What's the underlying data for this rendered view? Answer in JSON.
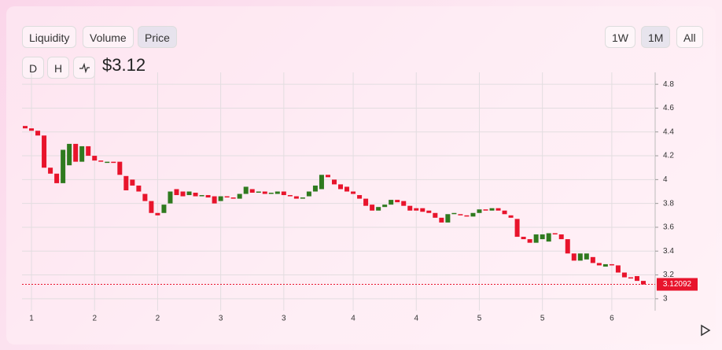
{
  "toolbar": {
    "tabs": [
      "Liquidity",
      "Volume",
      "Price"
    ],
    "ranges": [
      "1W",
      "1M",
      "All"
    ],
    "intervals": [
      "D",
      "H"
    ]
  },
  "price": "$3.12",
  "chart_data": {
    "type": "candlestick",
    "categories": [
      null,
      "1",
      null,
      null,
      null,
      null,
      null,
      null,
      null,
      null,
      null,
      "2",
      null,
      null,
      null,
      null,
      null,
      null,
      null,
      null,
      null,
      "2",
      null,
      null,
      null,
      null,
      null,
      null,
      null,
      null,
      null,
      "3",
      null,
      null,
      null,
      null,
      null,
      null,
      null,
      null,
      null,
      "3",
      null,
      null,
      null,
      null,
      null,
      null,
      null,
      null,
      null,
      null,
      "4",
      null,
      null,
      null,
      null,
      null,
      null,
      null,
      null,
      null,
      "4",
      null,
      null,
      null,
      null,
      null,
      null,
      null,
      null,
      null,
      "5",
      null,
      null,
      null,
      null,
      null,
      null,
      null,
      null,
      null,
      "5",
      null,
      null,
      null,
      null,
      null,
      null,
      null,
      null,
      null,
      null,
      "6",
      null,
      null,
      null,
      null,
      null
    ],
    "open": [
      4.45,
      4.43,
      4.41,
      4.37,
      4.1,
      4.05,
      3.97,
      4.12,
      4.3,
      4.15,
      4.28,
      4.2,
      4.16,
      4.15,
      4.15,
      4.15,
      4.03,
      4.0,
      3.95,
      3.88,
      3.82,
      3.72,
      3.72,
      3.8,
      3.92,
      3.9,
      3.87,
      3.89,
      3.86,
      3.87,
      3.86,
      3.82,
      3.86,
      3.85,
      3.84,
      3.88,
      3.92,
      3.89,
      3.9,
      3.88,
      3.88,
      3.9,
      3.87,
      3.86,
      3.84,
      3.86,
      3.9,
      3.92,
      4.04,
      4.0,
      3.96,
      3.94,
      3.9,
      3.87,
      3.84,
      3.79,
      3.74,
      3.77,
      3.79,
      3.83,
      3.82,
      3.78,
      3.76,
      3.76,
      3.74,
      3.72,
      3.68,
      3.64,
      3.71,
      3.71,
      3.7,
      3.69,
      3.72,
      3.75,
      3.74,
      3.76,
      3.74,
      3.7,
      3.67,
      3.52,
      3.5,
      3.47,
      3.5,
      3.48,
      3.55,
      3.54,
      3.5,
      3.38,
      3.32,
      3.33,
      3.35,
      3.3,
      3.27,
      3.29,
      3.28,
      3.22,
      3.18,
      3.19,
      3.15
    ],
    "close": [
      4.43,
      4.41,
      4.37,
      4.1,
      4.05,
      3.97,
      4.25,
      4.3,
      4.15,
      4.28,
      4.2,
      4.16,
      4.15,
      4.15,
      4.14,
      4.04,
      3.91,
      3.95,
      3.9,
      3.82,
      3.72,
      3.7,
      3.79,
      3.9,
      3.87,
      3.86,
      3.9,
      3.86,
      3.87,
      3.85,
      3.8,
      3.86,
      3.85,
      3.84,
      3.88,
      3.94,
      3.89,
      3.9,
      3.88,
      3.89,
      3.9,
      3.87,
      3.86,
      3.84,
      3.85,
      3.9,
      3.95,
      4.04,
      4.02,
      3.96,
      3.92,
      3.9,
      3.88,
      3.84,
      3.78,
      3.74,
      3.77,
      3.79,
      3.83,
      3.81,
      3.78,
      3.74,
      3.74,
      3.73,
      3.72,
      3.68,
      3.64,
      3.71,
      3.72,
      3.7,
      3.69,
      3.72,
      3.75,
      3.74,
      3.76,
      3.74,
      3.71,
      3.68,
      3.52,
      3.5,
      3.47,
      3.54,
      3.54,
      3.55,
      3.54,
      3.5,
      3.38,
      3.32,
      3.38,
      3.38,
      3.3,
      3.28,
      3.29,
      3.28,
      3.22,
      3.18,
      3.17,
      3.15,
      3.12
    ],
    "up_color": "#2f7a1f",
    "down_color": "#e8142c",
    "ylim": [
      2.9,
      4.9
    ],
    "yticks": [
      3,
      3.2,
      3.4,
      3.6,
      3.8,
      4,
      4.2,
      4.4,
      4.6,
      4.8
    ],
    "last_price": 3.12092,
    "grid": true
  }
}
